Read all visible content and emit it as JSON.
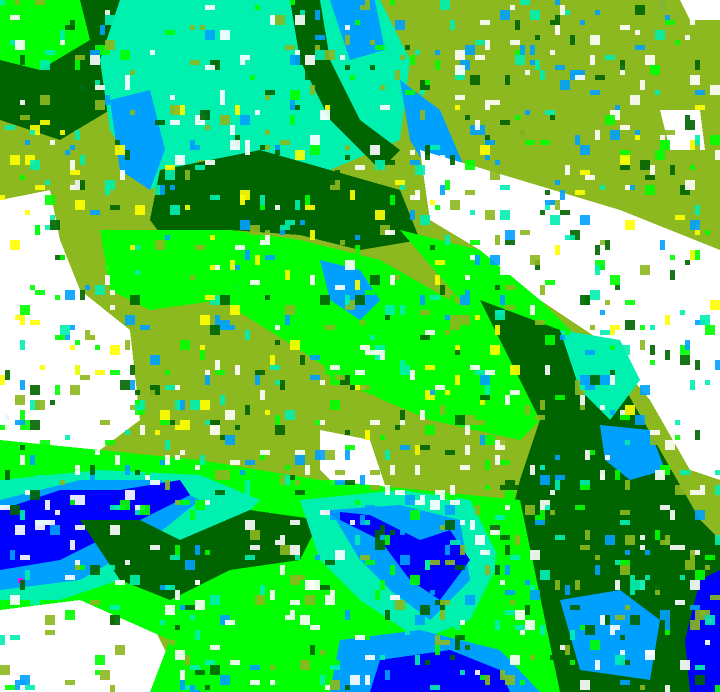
{
  "map": {
    "type": "classified raster",
    "class_colors": {
      "olive": "#8cb820",
      "white": "#ffffff",
      "dark_green": "#006400",
      "lime": "#00ff00",
      "aqua": "#00f0b0",
      "sky_blue": "#00a0ff",
      "blue": "#0000ff",
      "magenta": "#ff00ff",
      "yellow": "#ffff00"
    }
  }
}
